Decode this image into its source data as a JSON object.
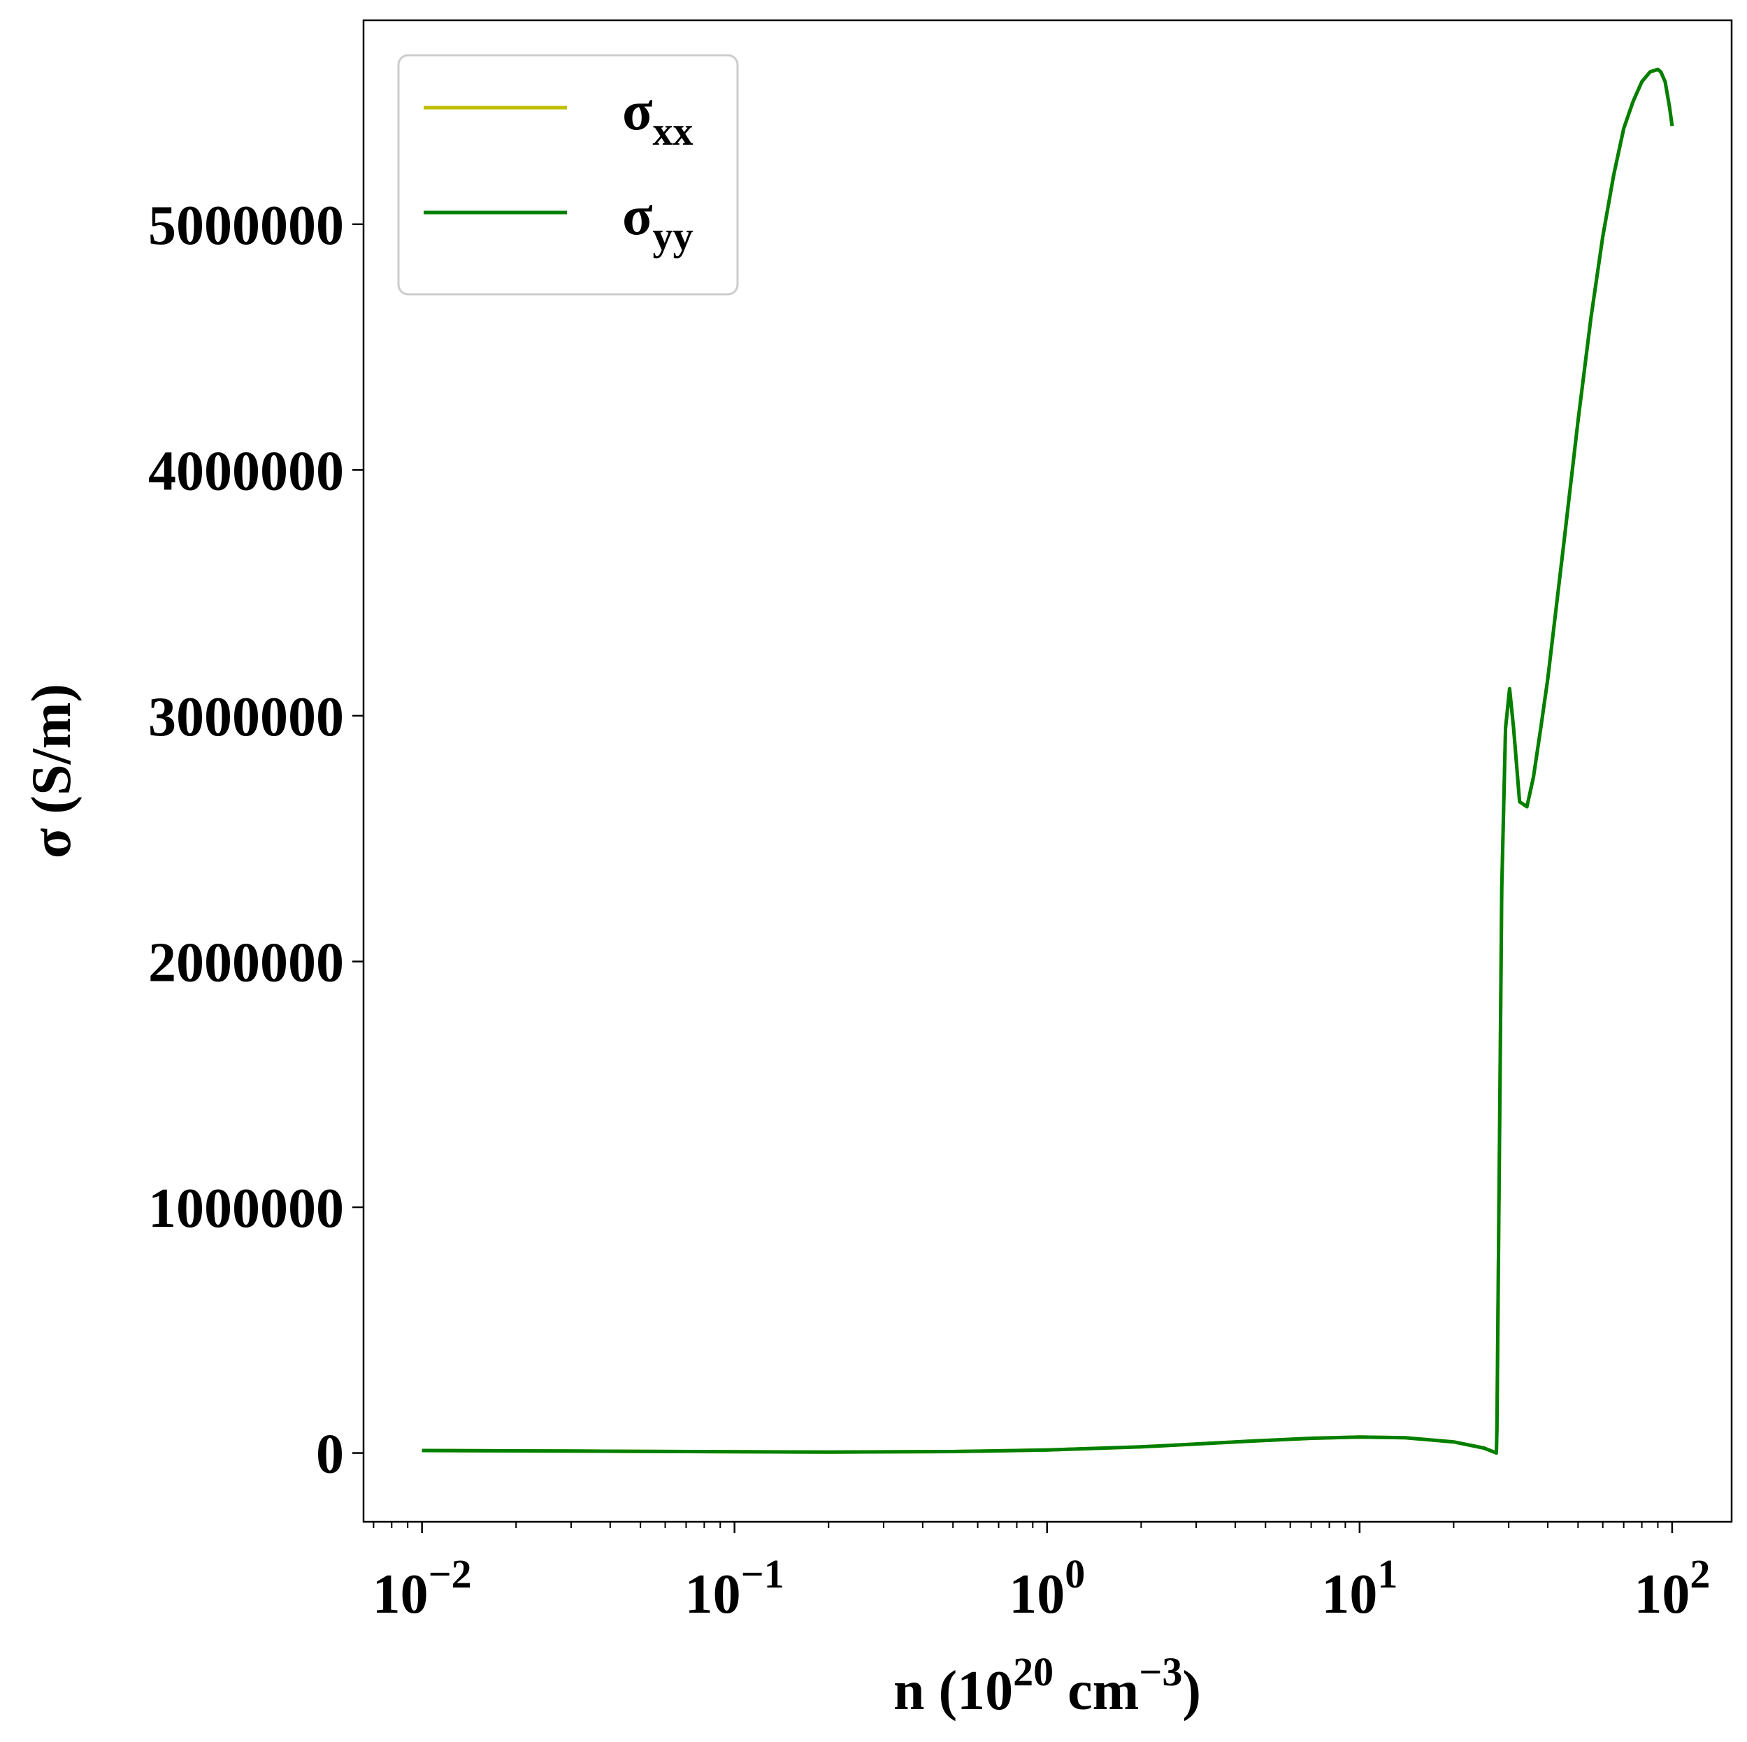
{
  "chart_data": {
    "type": "line",
    "xlabel": {
      "main": "n (10",
      "sup1": "20",
      "mid": " cm",
      "sup2": "−3",
      "end": ")"
    },
    "ylabel": "σ (S/m)",
    "xscale": "log",
    "xlim": [
      0.0065,
      155
    ],
    "ylim": [
      -280000,
      5830000
    ],
    "x_ticks": [
      {
        "value": 0.01,
        "base": "10",
        "exp": "−2"
      },
      {
        "value": 0.1,
        "base": "10",
        "exp": "−1"
      },
      {
        "value": 1,
        "base": "10",
        "exp": "0"
      },
      {
        "value": 10,
        "base": "10",
        "exp": "1"
      },
      {
        "value": 100,
        "base": "10",
        "exp": "2"
      }
    ],
    "y_ticks": [
      {
        "value": 0,
        "label": "0"
      },
      {
        "value": 1000000,
        "label": "1000000"
      },
      {
        "value": 2000000,
        "label": "2000000"
      },
      {
        "value": 3000000,
        "label": "3000000"
      },
      {
        "value": 4000000,
        "label": "4000000"
      },
      {
        "value": 5000000,
        "label": "5000000"
      }
    ],
    "grid": false,
    "legend_position": "top-left",
    "series": [
      {
        "name": "σxx",
        "label_main": "σ",
        "label_sub": "xx",
        "color": "#bfbf00",
        "x": [
          0.01,
          0.03,
          0.1,
          0.2,
          0.5,
          1,
          2,
          4,
          7,
          10,
          14,
          20,
          25,
          27.4,
          27.5,
          28.5,
          29.3,
          30.2,
          31.1,
          32.5,
          34.3,
          36,
          38,
          40,
          45,
          50,
          55,
          60,
          65,
          70,
          75,
          80,
          85,
          90,
          92,
          95,
          98,
          100
        ],
        "y": [
          10000,
          8000,
          5000,
          4000,
          6000,
          12000,
          25000,
          45000,
          60000,
          65000,
          62000,
          45000,
          20000,
          0,
          100000,
          2300000,
          2950000,
          3110000,
          2950000,
          2650000,
          2630000,
          2750000,
          2950000,
          3150000,
          3700000,
          4200000,
          4620000,
          4950000,
          5200000,
          5390000,
          5500000,
          5580000,
          5620000,
          5630000,
          5620000,
          5580000,
          5480000,
          5400000
        ]
      },
      {
        "name": "σyy",
        "label_main": "σ",
        "label_sub": "yy",
        "color": "#007f00",
        "x": [
          0.01,
          0.03,
          0.1,
          0.2,
          0.5,
          1,
          2,
          4,
          7,
          10,
          14,
          20,
          25,
          27.4,
          27.5,
          28.5,
          29.3,
          30.2,
          31.1,
          32.5,
          34.3,
          36,
          38,
          40,
          45,
          50,
          55,
          60,
          65,
          70,
          75,
          80,
          85,
          90,
          92,
          95,
          98,
          100
        ],
        "y": [
          10000,
          8000,
          5000,
          4000,
          6000,
          12000,
          25000,
          45000,
          60000,
          65000,
          62000,
          45000,
          20000,
          0,
          100000,
          2300000,
          2950000,
          3110000,
          2950000,
          2650000,
          2630000,
          2750000,
          2950000,
          3150000,
          3700000,
          4200000,
          4620000,
          4950000,
          5200000,
          5390000,
          5500000,
          5580000,
          5620000,
          5630000,
          5620000,
          5580000,
          5480000,
          5400000
        ]
      }
    ]
  }
}
